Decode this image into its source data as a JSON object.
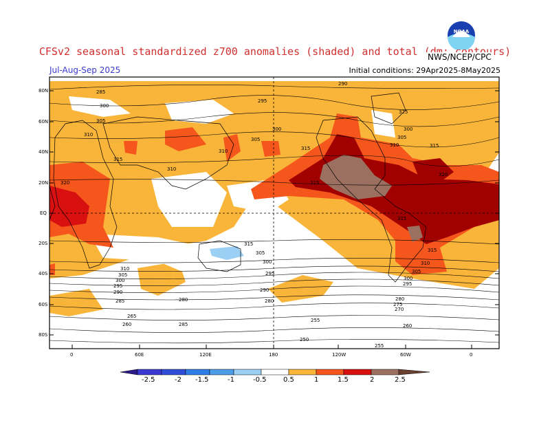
{
  "header": {
    "title": "CFSv2 seasonal standardized z700 anomalies (shaded) and total (dm; contours)",
    "period": "Jul-Aug-Sep 2025",
    "initial_conditions": "Initial conditions: 29Apr2025-8May2025",
    "agency": "NWS/NCEP/CPC",
    "logo_text": "NOAA"
  },
  "axes": {
    "lat_labels": [
      "80N",
      "60N",
      "40N",
      "20N",
      "EQ",
      "20S",
      "40S",
      "60S",
      "80S"
    ],
    "lon_labels": [
      "0",
      "60E",
      "120E",
      "180",
      "120W",
      "60W",
      "0"
    ]
  },
  "colorbar": {
    "labels": [
      "-2.5",
      "-2",
      "-1.5",
      "-1",
      "-0.5",
      "0.5",
      "1",
      "1.5",
      "2",
      "2.5"
    ],
    "colors": [
      "#2a1a8a",
      "#3a3ad0",
      "#2f6fe0",
      "#4d9ee8",
      "#9ccff4",
      "#ffffff",
      "#f9b43a",
      "#f4561c",
      "#d81010",
      "#a00000",
      "#9b7060",
      "#6a4030"
    ]
  },
  "contours": {
    "labels": [
      "290",
      "285",
      "300",
      "295",
      "305",
      "310",
      "315",
      "320",
      "310",
      "305",
      "300",
      "315",
      "325",
      "310",
      "305",
      "300",
      "315",
      "310",
      "305",
      "300",
      "295",
      "290",
      "285",
      "280",
      "275",
      "270",
      "265",
      "260",
      "255",
      "250",
      "255",
      "260"
    ]
  }
}
